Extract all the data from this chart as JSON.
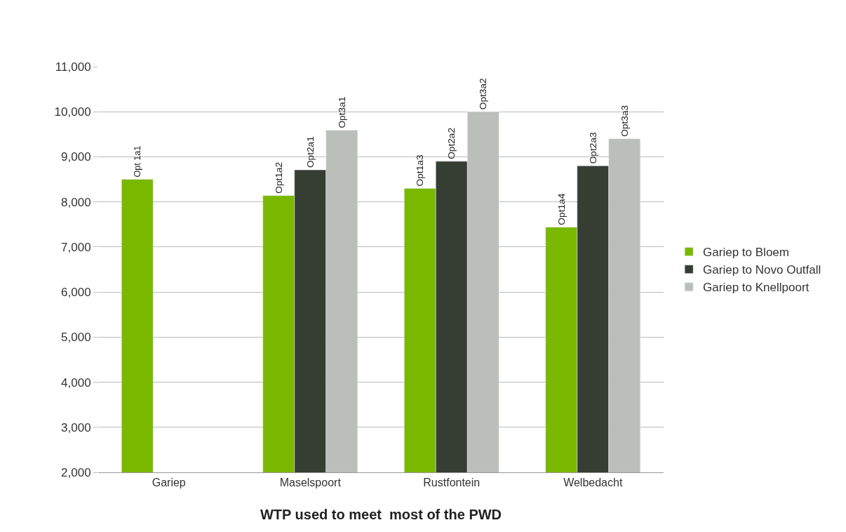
{
  "chart_data": {
    "type": "bar",
    "xlabel": "WTP used to meet  most of the PWD",
    "categories": [
      "Gariep",
      "Maselspoort",
      "Rustfontein",
      "Welbedacht"
    ],
    "series": [
      {
        "name": "Gariep to Bloem",
        "color": "#7ab800",
        "values": [
          8500,
          8140,
          8300,
          7440
        ],
        "value_labels": [
          "Opt 1a1",
          "Opt1a2",
          "Opt1a3",
          "Opt1a4"
        ]
      },
      {
        "name": "Gariep to Novo Outfall",
        "color": "#363d33",
        "values": [
          null,
          8710,
          8900,
          8800
        ],
        "value_labels": [
          null,
          "Opt2a1",
          "Opt2a2",
          "Opt2a3"
        ]
      },
      {
        "name": "Gariep to Knellpoort",
        "color": "#bbbfb9",
        "values": [
          null,
          9590,
          10000,
          9400
        ],
        "value_labels": [
          null,
          "Opt3a1",
          "Opt3a2",
          "Opt3a3"
        ]
      }
    ],
    "ylim": [
      2000,
      11000
    ],
    "yticks": [
      {
        "value": 2000,
        "label": "2,000"
      },
      {
        "value": 3000,
        "label": "3,000"
      },
      {
        "value": 4000,
        "label": "4,000"
      },
      {
        "value": 5000,
        "label": "5,000"
      },
      {
        "value": 6000,
        "label": "6,000"
      },
      {
        "value": 7000,
        "label": "7,000"
      },
      {
        "value": 8000,
        "label": "8,000"
      },
      {
        "value": 9000,
        "label": "9,000"
      },
      {
        "value": 10000,
        "label": "10,000"
      },
      {
        "value": 11000,
        "label": "11,000"
      }
    ],
    "grid": "y",
    "legend": "right"
  }
}
